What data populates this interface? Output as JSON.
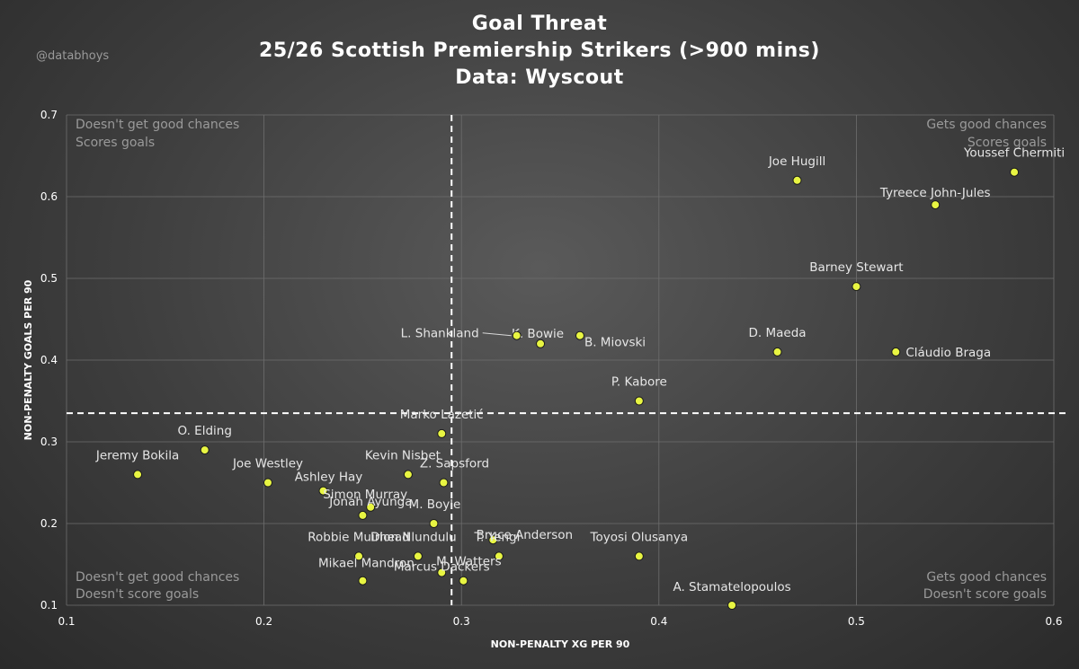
{
  "watermark": "@databhoys",
  "chart_data": {
    "type": "scatter",
    "title_lines": [
      "Goal Threat",
      "25/26 Scottish Premiership Strikers (>900 mins)",
      "Data: Wyscout"
    ],
    "xlabel": "NON-PENALTY XG PER 90",
    "ylabel": "NON-PENALTY GOALS PER 90",
    "xlim": [
      0.1,
      0.6
    ],
    "ylim": [
      0.1,
      0.7
    ],
    "xticks": [
      0.1,
      0.2,
      0.3,
      0.4,
      0.5,
      0.6
    ],
    "yticks": [
      0.1,
      0.2,
      0.3,
      0.4,
      0.5,
      0.6,
      0.7
    ],
    "xtick_labels": [
      "0.1",
      "0.2",
      "0.3",
      "0.4",
      "0.5",
      "0.6"
    ],
    "ytick_labels": [
      "0.1",
      "0.2",
      "0.3",
      "0.4",
      "0.5",
      "0.6",
      "0.7"
    ],
    "grid": true,
    "reference_lines": {
      "x": 0.295,
      "y": 0.335
    },
    "quadrants": {
      "top_left": [
        "Doesn't get good chances",
        "Scores goals"
      ],
      "top_right": [
        "Gets good chances",
        "Scores goals"
      ],
      "bottom_left": [
        "Doesn't get good chances",
        "Doesn't score goals"
      ],
      "bottom_right": [
        "Gets good chances",
        "Doesn't score goals"
      ]
    },
    "points": [
      {
        "name": "Youssef Chermiti",
        "x": 0.58,
        "y": 0.63
      },
      {
        "name": "Joe Hugill",
        "x": 0.47,
        "y": 0.62
      },
      {
        "name": "Tyreece John-Jules",
        "x": 0.54,
        "y": 0.59
      },
      {
        "name": "Barney Stewart",
        "x": 0.5,
        "y": 0.49
      },
      {
        "name": "D. Maeda",
        "x": 0.46,
        "y": 0.41
      },
      {
        "name": "Cláudio Braga",
        "x": 0.52,
        "y": 0.41
      },
      {
        "name": "K. Bowie",
        "x": 0.34,
        "y": 0.42
      },
      {
        "name": "L. Shankland",
        "x": 0.328,
        "y": 0.43
      },
      {
        "name": "B. Miovski",
        "x": 0.36,
        "y": 0.43
      },
      {
        "name": "P. Kabore",
        "x": 0.39,
        "y": 0.35
      },
      {
        "name": "Marko Lazetić",
        "x": 0.29,
        "y": 0.31
      },
      {
        "name": "O. Elding",
        "x": 0.17,
        "y": 0.29
      },
      {
        "name": "Jeremy Bokila",
        "x": 0.136,
        "y": 0.26
      },
      {
        "name": "Joe Westley",
        "x": 0.202,
        "y": 0.25
      },
      {
        "name": "Ashley Hay",
        "x": 0.23,
        "y": 0.24
      },
      {
        "name": "Kevin Nisbet",
        "x": 0.273,
        "y": 0.26
      },
      {
        "name": "Z. Sapsford",
        "x": 0.291,
        "y": 0.25
      },
      {
        "name": "Simon Murray",
        "x": 0.254,
        "y": 0.22
      },
      {
        "name": "Jonah Ayunga",
        "x": 0.25,
        "y": 0.21
      },
      {
        "name": "M. Boyle",
        "x": 0.286,
        "y": 0.2
      },
      {
        "name": "Bruce Anderson",
        "x": 0.316,
        "y": 0.18
      },
      {
        "name": "T. Yengi",
        "x": 0.319,
        "y": 0.16
      },
      {
        "name": "Robbie Muirhead",
        "x": 0.248,
        "y": 0.16
      },
      {
        "name": "Dion Nlundulu",
        "x": 0.278,
        "y": 0.16
      },
      {
        "name": "Marcus Dackers",
        "x": 0.29,
        "y": 0.14
      },
      {
        "name": "M. Watters",
        "x": 0.301,
        "y": 0.13
      },
      {
        "name": "Mikael Mandron",
        "x": 0.25,
        "y": 0.13
      },
      {
        "name": "Toyosi Olusanya",
        "x": 0.39,
        "y": 0.16
      },
      {
        "name": "A. Stamatelopoulos",
        "x": 0.437,
        "y": 0.1
      }
    ]
  }
}
